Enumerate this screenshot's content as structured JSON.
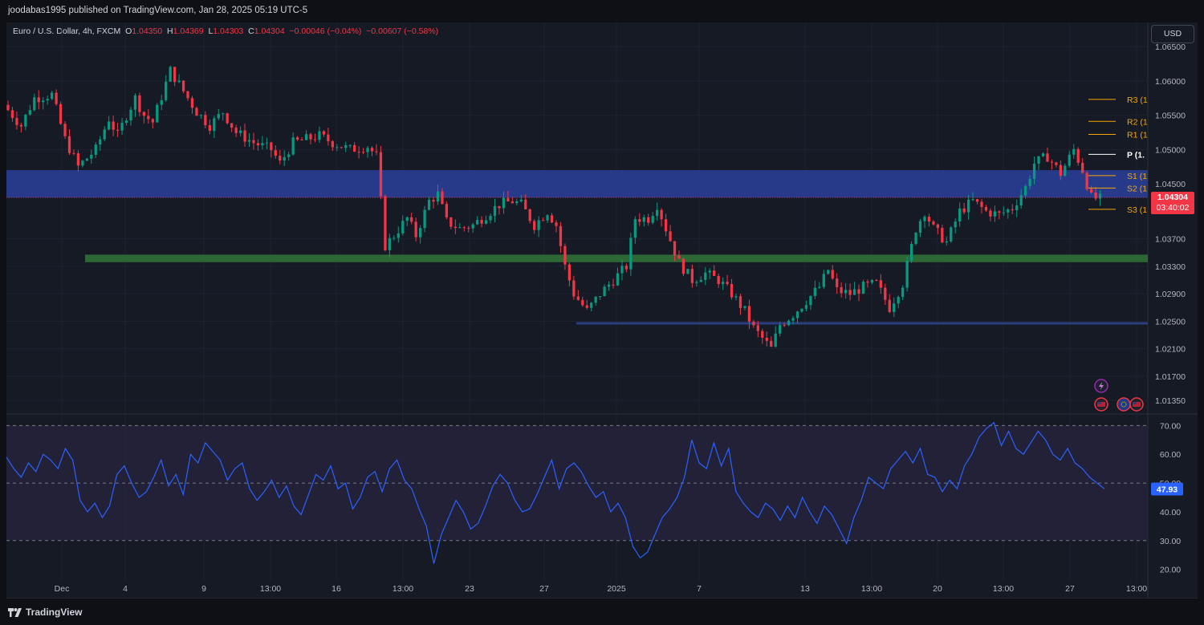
{
  "header": {
    "published": "joodabas1995 published on TradingView.com, Jan 28, 2025 05:19 UTC-5",
    "symbol": "Euro / U.S. Dollar, 4h, FXCM",
    "o_label": "O",
    "o": "1.04350",
    "h_label": "H",
    "h": "1.04369",
    "l_label": "L",
    "l": "1.04303",
    "c_label": "C",
    "c": "1.04304",
    "change": "−0.00046 (−0.04%)",
    "change2": "−0.00607 (−0.58%)",
    "currency": "USD"
  },
  "footer": {
    "brand": "TradingView"
  },
  "colors": {
    "up": "#089981",
    "down": "#f23645",
    "pivot": "#f7a600",
    "rsi": "#2962ff",
    "zone_blue": "#283c8f",
    "zone_green": "#2e6b36",
    "support_line": "#2b3f80"
  },
  "chart_data": [
    {
      "type": "candlestick",
      "title": "Euro / U.S. Dollar, 4h, FXCM",
      "ylim": [
        1.0115,
        1.0685
      ],
      "y_ticks": [
        "1.06500",
        "1.06000",
        "1.05500",
        "1.05000",
        "1.04500",
        "1.03700",
        "1.03300",
        "1.02900",
        "1.02500",
        "1.02100",
        "1.01700",
        "1.01350"
      ],
      "x_ticks": [
        "Dec",
        "4",
        "9",
        "13:00",
        "16",
        "13:00",
        "23",
        "27",
        "2025",
        "7",
        "13",
        "13:00",
        "20",
        "13:00",
        "27",
        "13:00"
      ],
      "last_price": "1.04304",
      "countdown": "03:40:02",
      "price_path": [
        [
          0,
          1.0565
        ],
        [
          4,
          1.0535
        ],
        [
          7,
          1.0575
        ],
        [
          11,
          1.058
        ],
        [
          14,
          1.0515
        ],
        [
          17,
          1.0475
        ],
        [
          21,
          1.05
        ],
        [
          24,
          1.0545
        ],
        [
          26,
          1.052
        ],
        [
          28,
          1.055
        ],
        [
          30,
          1.0575
        ],
        [
          32,
          1.055
        ],
        [
          34,
          1.054
        ],
        [
          38,
          1.0615
        ],
        [
          41,
          1.0585
        ],
        [
          44,
          1.0555
        ],
        [
          47,
          1.0535
        ],
        [
          50,
          1.0555
        ],
        [
          53,
          1.0525
        ],
        [
          57,
          1.051
        ],
        [
          61,
          1.05
        ],
        [
          63,
          1.048
        ],
        [
          66,
          1.051
        ],
        [
          69,
          1.0515
        ],
        [
          72,
          1.052
        ],
        [
          75,
          1.051
        ],
        [
          79,
          1.05
        ],
        [
          83,
          1.0505
        ],
        [
          85,
          1.049
        ],
        [
          87,
          1.036
        ],
        [
          89,
          1.0375
        ],
        [
          92,
          1.04
        ],
        [
          94,
          1.0375
        ],
        [
          97,
          1.0425
        ],
        [
          99,
          1.0435
        ],
        [
          101,
          1.0395
        ],
        [
          104,
          1.0385
        ],
        [
          107,
          1.039
        ],
        [
          110,
          1.0405
        ],
        [
          113,
          1.042
        ],
        [
          116,
          1.0425
        ],
        [
          118,
          1.042
        ],
        [
          121,
          1.039
        ],
        [
          124,
          1.041
        ],
        [
          126,
          1.039
        ],
        [
          128,
          1.033
        ],
        [
          130,
          1.029
        ],
        [
          133,
          1.0265
        ],
        [
          136,
          1.029
        ],
        [
          139,
          1.031
        ],
        [
          142,
          1.033
        ],
        [
          144,
          1.04
        ],
        [
          147,
          1.04
        ],
        [
          149,
          1.042
        ],
        [
          151,
          1.0385
        ],
        [
          154,
          1.0335
        ],
        [
          157,
          1.031
        ],
        [
          160,
          1.032
        ],
        [
          163,
          1.031
        ],
        [
          166,
          1.029
        ],
        [
          169,
          1.0265
        ],
        [
          171,
          1.024
        ],
        [
          173,
          1.0225
        ],
        [
          175,
          1.021
        ],
        [
          177,
          1.0245
        ],
        [
          180,
          1.026
        ],
        [
          183,
          1.028
        ],
        [
          186,
          1.03
        ],
        [
          188,
          1.0325
        ],
        [
          190,
          1.0295
        ],
        [
          193,
          1.029
        ],
        [
          196,
          1.03
        ],
        [
          199,
          1.0305
        ],
        [
          202,
          1.027
        ],
        [
          205,
          1.0305
        ],
        [
          208,
          1.0385
        ],
        [
          210,
          1.041
        ],
        [
          212,
          1.0385
        ],
        [
          215,
          1.0365
        ],
        [
          218,
          1.041
        ],
        [
          221,
          1.0425
        ],
        [
          224,
          1.041
        ],
        [
          227,
          1.0405
        ],
        [
          230,
          1.0415
        ],
        [
          233,
          1.0445
        ],
        [
          235,
          1.048
        ],
        [
          238,
          1.049
        ],
        [
          241,
          1.0465
        ],
        [
          244,
          1.05
        ],
        [
          246,
          1.047
        ],
        [
          248,
          1.043
        ],
        [
          250,
          1.0428
        ]
      ],
      "zones": [
        {
          "label": "resistance zone",
          "from": 1.043,
          "to": 1.047
        },
        {
          "label": "support zone",
          "from": 1.0336,
          "to": 1.0347
        }
      ],
      "support_line": 1.0247,
      "pivots": [
        {
          "label": "R3 (1",
          "value": 1.0573
        },
        {
          "label": "R2 (1",
          "value": 1.0541
        },
        {
          "label": "R1 (1",
          "value": 1.0522
        },
        {
          "label": "P (1.",
          "value": 1.0493
        },
        {
          "label": "S1 (1",
          "value": 1.0462
        },
        {
          "label": "S2 (1",
          "value": 1.0444
        },
        {
          "label": "S3 (1",
          "value": 1.0413
        }
      ]
    },
    {
      "type": "line",
      "title": "RSI",
      "ylim": [
        16,
        74
      ],
      "y_ticks": [
        "70.00",
        "60.00",
        "50.00",
        "40.00",
        "30.00",
        "20.00"
      ],
      "bands": [
        70,
        50,
        30
      ],
      "last_value": "47.93",
      "values": [
        59,
        55,
        52,
        57,
        54,
        60,
        58,
        55,
        62,
        58,
        44,
        40,
        43,
        38,
        42,
        53,
        56,
        50,
        45,
        47,
        52,
        58,
        49,
        53,
        46,
        60,
        57,
        64,
        61,
        58,
        51,
        55,
        57,
        48,
        44,
        47,
        51,
        45,
        49,
        42,
        39,
        46,
        53,
        51,
        56,
        48,
        50,
        41,
        45,
        52,
        54,
        47,
        55,
        58,
        51,
        48,
        41,
        35,
        22,
        32,
        38,
        44,
        40,
        34,
        36,
        42,
        49,
        53,
        50,
        44,
        40,
        41,
        46,
        52,
        58,
        48,
        55,
        57,
        54,
        49,
        45,
        47,
        40,
        43,
        38,
        28,
        24,
        26,
        32,
        38,
        41,
        45,
        52,
        65,
        57,
        55,
        64,
        56,
        62,
        47,
        43,
        40,
        38,
        43,
        41,
        37,
        42,
        38,
        45,
        40,
        36,
        42,
        39,
        34,
        29,
        38,
        44,
        52,
        50,
        48,
        55,
        58,
        61,
        57,
        62,
        53,
        52,
        47,
        51,
        48,
        56,
        60,
        66,
        69,
        71,
        63,
        68,
        62,
        60,
        64,
        68,
        65,
        60,
        58,
        62,
        57,
        55,
        52,
        50,
        48
      ]
    }
  ],
  "rsi_x_ticks": [
    "Dec",
    "4",
    "9",
    "13:00",
    "16",
    "13:00",
    "23",
    "27",
    "2025",
    "7",
    "13",
    "13:00",
    "20",
    "13:00",
    "27",
    "13:00"
  ]
}
